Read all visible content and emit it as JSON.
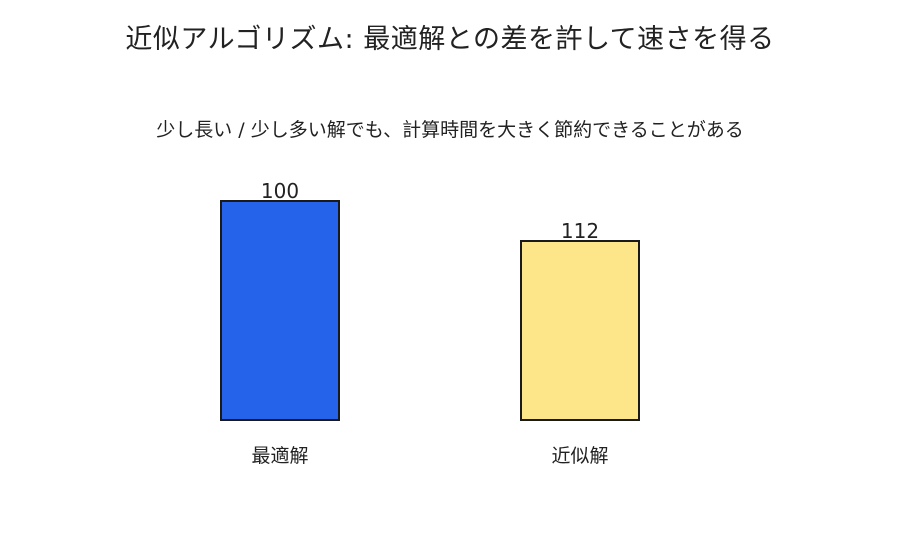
{
  "chart_data": {
    "type": "bar",
    "title": "近似アルゴリズム: 最適解との差を許して速さを得る",
    "subtitle": "少し長い / 少し多い解でも、計算時間を大きく節約できることがある",
    "categories": [
      "最適解",
      "近似解"
    ],
    "values": [
      100,
      112
    ],
    "value_labels": [
      "100",
      "112"
    ],
    "colors": [
      "#2563eb",
      "#fde68a"
    ],
    "xlabel": "",
    "ylabel": "",
    "grid": false,
    "legend": "none"
  }
}
